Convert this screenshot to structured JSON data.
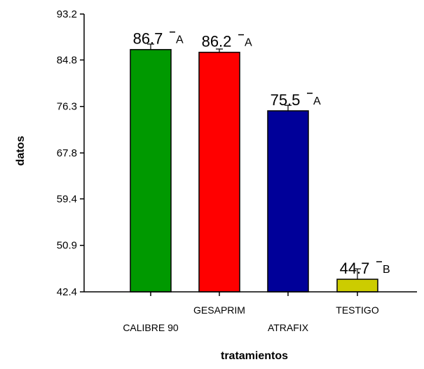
{
  "chart_data": {
    "type": "bar",
    "title": "",
    "xlabel": "tratamientos",
    "ylabel": "datos",
    "ylim": [
      42.4,
      93.2
    ],
    "yticks": [
      "42.4",
      "50.9",
      "59.4",
      "67.8",
      "76.3",
      "84.8",
      "93.2"
    ],
    "categories": [
      "CALIBRE 90",
      "GESAPRIM",
      "ATRAFIX",
      "TESTIGO"
    ],
    "values": [
      86.7,
      86.2,
      75.5,
      44.7
    ],
    "value_labels": [
      "86.7",
      "86.2",
      "75.5",
      "44.7"
    ],
    "error": [
      1.0,
      0.6,
      1.0,
      1.9
    ],
    "groups": [
      "A",
      "A",
      "A",
      "B"
    ],
    "colors": [
      "#009900",
      "#ff0000",
      "#000099",
      "#cccc00"
    ],
    "grid": false,
    "legend": "none"
  }
}
